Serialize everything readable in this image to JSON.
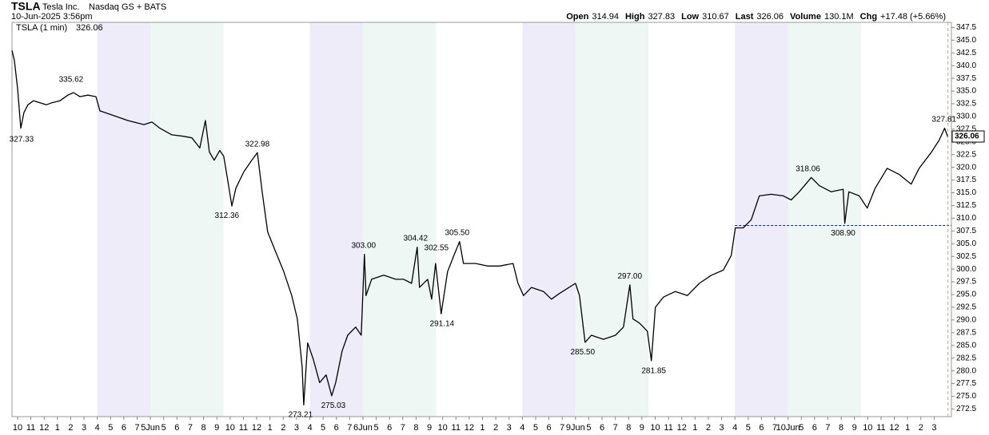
{
  "header": {
    "symbol": "TSLA",
    "company": "Tesla Inc.",
    "exchange": "Nasdaq GS + BATS",
    "datetime": "10-Jun-2025 3:56pm",
    "quote": [
      {
        "name": "Open",
        "value": "314.94"
      },
      {
        "name": "High",
        "value": "327.83"
      },
      {
        "name": "Low",
        "value": "310.67"
      },
      {
        "name": "Last",
        "value": "326.06"
      },
      {
        "name": "Volume",
        "value": "130.1M"
      },
      {
        "name": "Chg",
        "value": "+17.48 (+5.66%)"
      }
    ]
  },
  "chart_data": {
    "type": "line",
    "series": [
      {
        "name": "TSLA (1 min)",
        "color": "#000000",
        "x": [
          -0.42,
          -0.24,
          0,
          0.24,
          0.48,
          0.78,
          1.2,
          1.68,
          2.17,
          2.59,
          3.19,
          3.79,
          4.21,
          4.69,
          5.29,
          5.9,
          6.2,
          7.1,
          8.3,
          9.51,
          10.11,
          10.71,
          11.61,
          12.52,
          13.12,
          13.72,
          14.14,
          14.44,
          14.8,
          15.22,
          15.52,
          15.82,
          16.13,
          16.43,
          17.03,
          17.63,
          18.05,
          18.41,
          18.83,
          19.43,
          20.04,
          20.64,
          21.06,
          21.42,
          21.54,
          21.84,
          22.26,
          22.74,
          23.23,
          23.65,
          23.95,
          24.43,
          24.85,
          25.45,
          25.87,
          26.11,
          26.23,
          26.65,
          27.56,
          28.46,
          29.06,
          29.66,
          30.08,
          30.26,
          30.87,
          31.17,
          31.47,
          31.89,
          32.37,
          32.85,
          33.27,
          33.57,
          34.48,
          35.38,
          36.28,
          37.3,
          37.67,
          38.09,
          38.69,
          39.59,
          40.19,
          40.79,
          42,
          42.3,
          42.72,
          43.2,
          44.1,
          45.01,
          45.61,
          46.09,
          46.33,
          46.81,
          47.41,
          47.71,
          48.01,
          48.62,
          49.52,
          50.42,
          51.32,
          52.23,
          53.13,
          53.73,
          54.03,
          54.63,
          55.23,
          55.84,
          56.74,
          57.64,
          58.24,
          58.84,
          59.75,
          60.35,
          61.25,
          62.15,
          62.27,
          62.58,
          63.36,
          63.96,
          64.56,
          65.46,
          66.37,
          67.27,
          67.87,
          68.77,
          69.37,
          69.79,
          70.04
        ],
        "values": [
          343.0,
          341.0,
          335.5,
          327.7,
          330.8,
          332.3,
          333.1,
          332.7,
          332.3,
          332.7,
          333.1,
          334.2,
          334.7,
          333.9,
          334.2,
          333.9,
          331.1,
          330.3,
          329.2,
          328.4,
          328.9,
          327.7,
          326.4,
          326.1,
          325.8,
          323.8,
          329.2,
          323.0,
          321.4,
          323.3,
          322.2,
          317.5,
          312.4,
          315.9,
          319.1,
          321.4,
          322.9,
          315.2,
          307.3,
          303.4,
          299.5,
          294.8,
          290.2,
          280.8,
          273.3,
          285.5,
          282.3,
          277.7,
          279.2,
          275.1,
          277.7,
          283.9,
          287.0,
          288.6,
          287.0,
          302.9,
          294.8,
          298.0,
          298.8,
          298.0,
          298.0,
          297.2,
          304.3,
          296.4,
          298.0,
          294.1,
          301.1,
          291.2,
          299.5,
          302.7,
          305.4,
          301.1,
          301.1,
          300.6,
          300.6,
          301.1,
          297.2,
          294.8,
          296.4,
          295.6,
          294.1,
          295.2,
          297.2,
          294.8,
          285.6,
          287.0,
          286.2,
          287.0,
          288.6,
          296.9,
          290.2,
          289.4,
          287.8,
          282.0,
          292.5,
          294.5,
          295.6,
          294.8,
          297.2,
          298.8,
          299.8,
          302.7,
          308.1,
          308.1,
          309.7,
          314.4,
          314.7,
          314.4,
          313.6,
          315.2,
          318.0,
          316.4,
          315.2,
          315.7,
          309.0,
          315.2,
          314.4,
          312.0,
          315.9,
          319.8,
          318.6,
          316.7,
          319.8,
          322.9,
          325.3,
          327.7,
          325.9
        ]
      }
    ],
    "last": 326.06,
    "reference_line": 308.58,
    "annotations": [
      {
        "x": 0.3,
        "value": 327.33,
        "label": "327.33",
        "position": "below"
      },
      {
        "x": 4.03,
        "value": 335.62,
        "label": "335.62",
        "position": "above"
      },
      {
        "x": 15.76,
        "value": 312.36,
        "label": "312.36",
        "position": "below"
      },
      {
        "x": 18.05,
        "value": 322.98,
        "label": "322.98",
        "position": "above"
      },
      {
        "x": 21.3,
        "value": 273.21,
        "label": "273.21",
        "position": "below"
      },
      {
        "x": 23.77,
        "value": 275.03,
        "label": "275.03",
        "position": "below"
      },
      {
        "x": 26.05,
        "value": 303.0,
        "label": "303.00",
        "position": "above"
      },
      {
        "x": 29.96,
        "value": 304.42,
        "label": "304.42",
        "position": "above"
      },
      {
        "x": 31.53,
        "value": 302.55,
        "label": "302.55",
        "position": "above"
      },
      {
        "x": 33.09,
        "value": 305.5,
        "label": "305.50",
        "position": "above"
      },
      {
        "x": 31.95,
        "value": 291.14,
        "label": "291.14",
        "position": "below"
      },
      {
        "x": 42.54,
        "value": 285.5,
        "label": "285.50",
        "position": "below"
      },
      {
        "x": 46.09,
        "value": 297.0,
        "label": "297.00",
        "position": "above"
      },
      {
        "x": 47.89,
        "value": 281.85,
        "label": "281.85",
        "position": "below"
      },
      {
        "x": 59.5,
        "value": 318.06,
        "label": "318.06",
        "position": "above"
      },
      {
        "x": 62.15,
        "value": 308.9,
        "label": "308.90",
        "position": "below"
      },
      {
        "x": 69.74,
        "value": 327.81,
        "label": "327.81",
        "position": "above"
      }
    ],
    "xlim": [
      -0.42,
      70.3
    ],
    "xticks": [
      {
        "value": 0,
        "label": "10"
      },
      {
        "value": 1,
        "label": "11"
      },
      {
        "value": 2,
        "label": "12"
      },
      {
        "value": 3,
        "label": "1"
      },
      {
        "value": 4,
        "label": "2"
      },
      {
        "value": 5,
        "label": "3"
      },
      {
        "value": 6,
        "label": "4"
      },
      {
        "value": 7,
        "label": "5"
      },
      {
        "value": 8,
        "label": "6"
      },
      {
        "value": 9,
        "label": "7"
      },
      {
        "value": 10,
        "label": "5Jun"
      },
      {
        "value": 11,
        "label": "5"
      },
      {
        "value": 12,
        "label": "6"
      },
      {
        "value": 13,
        "label": "7"
      },
      {
        "value": 14,
        "label": "8"
      },
      {
        "value": 15,
        "label": "9"
      },
      {
        "value": 16,
        "label": "10"
      },
      {
        "value": 17,
        "label": "11"
      },
      {
        "value": 18,
        "label": "12"
      },
      {
        "value": 19,
        "label": "1"
      },
      {
        "value": 20,
        "label": "2"
      },
      {
        "value": 21,
        "label": "3"
      },
      {
        "value": 22,
        "label": "4"
      },
      {
        "value": 23,
        "label": "5"
      },
      {
        "value": 24,
        "label": "6"
      },
      {
        "value": 25,
        "label": "7"
      },
      {
        "value": 26,
        "label": "6Jun"
      },
      {
        "value": 27,
        "label": "5"
      },
      {
        "value": 28,
        "label": "6"
      },
      {
        "value": 29,
        "label": "7"
      },
      {
        "value": 30,
        "label": "8"
      },
      {
        "value": 31,
        "label": "9"
      },
      {
        "value": 32,
        "label": "10"
      },
      {
        "value": 33,
        "label": "11"
      },
      {
        "value": 34,
        "label": "12"
      },
      {
        "value": 35,
        "label": "1"
      },
      {
        "value": 36,
        "label": "2"
      },
      {
        "value": 37,
        "label": "3"
      },
      {
        "value": 38,
        "label": "4"
      },
      {
        "value": 39,
        "label": "5"
      },
      {
        "value": 40,
        "label": "6"
      },
      {
        "value": 41,
        "label": "7"
      },
      {
        "value": 42,
        "label": "9Jun"
      },
      {
        "value": 43,
        "label": "5"
      },
      {
        "value": 44,
        "label": "6"
      },
      {
        "value": 45,
        "label": "7"
      },
      {
        "value": 46,
        "label": "8"
      },
      {
        "value": 47,
        "label": "9"
      },
      {
        "value": 48,
        "label": "10"
      },
      {
        "value": 49,
        "label": "11"
      },
      {
        "value": 50,
        "label": "12"
      },
      {
        "value": 51,
        "label": "1"
      },
      {
        "value": 52,
        "label": "2"
      },
      {
        "value": 53,
        "label": "3"
      },
      {
        "value": 54,
        "label": "4"
      },
      {
        "value": 55,
        "label": "5"
      },
      {
        "value": 56,
        "label": "6"
      },
      {
        "value": 57,
        "label": "7"
      },
      {
        "value": 58,
        "label": "10Jun"
      },
      {
        "value": 59,
        "label": "5"
      },
      {
        "value": 60,
        "label": "6"
      },
      {
        "value": 61,
        "label": "7"
      },
      {
        "value": 62,
        "label": "8"
      },
      {
        "value": 63,
        "label": "9"
      },
      {
        "value": 64,
        "label": "10"
      },
      {
        "value": 65,
        "label": "11"
      },
      {
        "value": 66,
        "label": "12"
      },
      {
        "value": 67,
        "label": "1"
      },
      {
        "value": 68,
        "label": "2"
      },
      {
        "value": 69,
        "label": "3"
      }
    ],
    "ylim": [
      271,
      348.5
    ],
    "yticks": [
      {
        "value": 272.5,
        "label": "272.5"
      },
      {
        "value": 275,
        "label": "275.0"
      },
      {
        "value": 277.5,
        "label": "277.5"
      },
      {
        "value": 280,
        "label": "280.0"
      },
      {
        "value": 282.5,
        "label": "282.5"
      },
      {
        "value": 285,
        "label": "285.0"
      },
      {
        "value": 287.5,
        "label": "287.5"
      },
      {
        "value": 290,
        "label": "290.0"
      },
      {
        "value": 292.5,
        "label": "292.5"
      },
      {
        "value": 295,
        "label": "295.0"
      },
      {
        "value": 297.5,
        "label": "297.5"
      },
      {
        "value": 300,
        "label": "300.0"
      },
      {
        "value": 302.5,
        "label": "302.5"
      },
      {
        "value": 305,
        "label": "305.0"
      },
      {
        "value": 307.5,
        "label": "307.5"
      },
      {
        "value": 310,
        "label": "310.0"
      },
      {
        "value": 312.5,
        "label": "312.5"
      },
      {
        "value": 315,
        "label": "315.0"
      },
      {
        "value": 317.5,
        "label": "317.5"
      },
      {
        "value": 320,
        "label": "320.0"
      },
      {
        "value": 322.5,
        "label": "322.5"
      },
      {
        "value": 325,
        "label": "325.0"
      },
      {
        "value": 327.5,
        "label": "327.5"
      },
      {
        "value": 330,
        "label": "330.0"
      },
      {
        "value": 332.5,
        "label": "332.5"
      },
      {
        "value": 335,
        "label": "335.0"
      },
      {
        "value": 337.5,
        "label": "337.5"
      },
      {
        "value": 340,
        "label": "340.0"
      },
      {
        "value": 342.5,
        "label": "342.5"
      },
      {
        "value": 345,
        "label": "345.0"
      },
      {
        "value": 347.5,
        "label": "347.5"
      }
    ],
    "grid": false
  }
}
